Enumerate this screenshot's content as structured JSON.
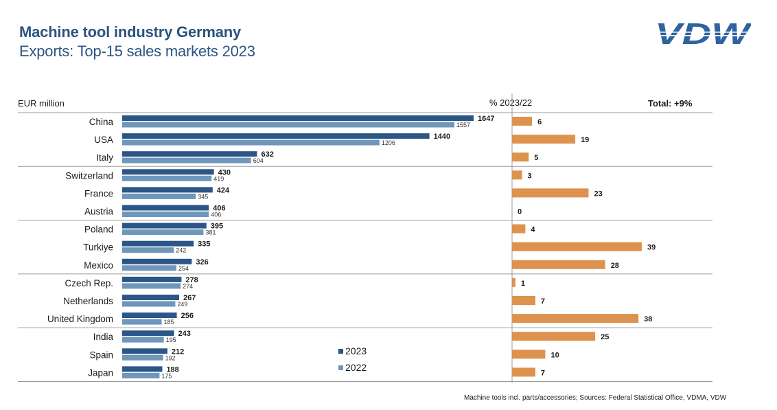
{
  "header": {
    "title": "Machine tool industry Germany",
    "subtitle": "Exports: Top-15 sales markets 2023",
    "logo_text": "VDW"
  },
  "footnote": "Machine tools incl. parts/accessories;  Sources: Federal Statistical Office, VDMA,  VDW",
  "colors": {
    "series_2023": "#2b5687",
    "series_2022": "#6f96bb",
    "change": "#dd924d",
    "title": "#2b5480",
    "logo": "#2f63a0",
    "gridline": "#9a9a9a"
  },
  "chart_data": {
    "type": "bar",
    "orientation": "horizontal",
    "title": "Machine tool industry Germany",
    "subtitle": "Exports: Top-15 sales markets 2023",
    "unit_label": "EUR million",
    "categories": [
      "China",
      "USA",
      "Italy",
      "Switzerland",
      "France",
      "Austria",
      "Poland",
      "Turkiye",
      "Mexico",
      "Czech Rep.",
      "Netherlands",
      "United Kingdom",
      "India",
      "Spain",
      "Japan"
    ],
    "series": [
      {
        "name": "2023",
        "values": [
          1647,
          1440,
          632,
          430,
          424,
          406,
          395,
          335,
          326,
          278,
          267,
          256,
          243,
          212,
          188
        ]
      },
      {
        "name": "2022",
        "values": [
          1557,
          1206,
          604,
          419,
          345,
          406,
          381,
          242,
          254,
          274,
          249,
          185,
          195,
          192,
          175
        ]
      }
    ],
    "change_panel": {
      "header": "% 2023/22",
      "total_label": "Total: +9%",
      "values": [
        6,
        19,
        5,
        3,
        23,
        0,
        4,
        39,
        28,
        1,
        7,
        38,
        25,
        10,
        7
      ]
    },
    "group_size": 3,
    "xlim": [
      0,
      1647
    ],
    "change_xlim": [
      0,
      39
    ],
    "grid": false,
    "legend": {
      "placement": "bottom-center",
      "entries": [
        "2023",
        "2022"
      ]
    }
  }
}
